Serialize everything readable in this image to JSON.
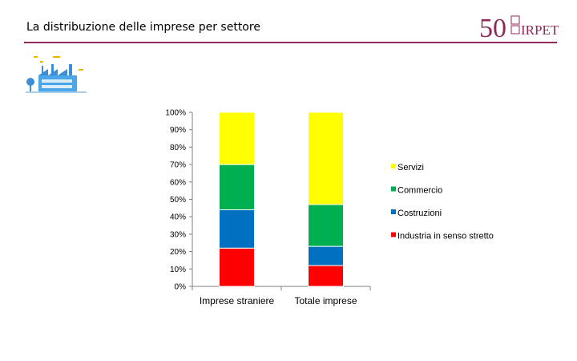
{
  "header": {
    "title": "La distribuzione delle imprese per settore",
    "logo_number": "50",
    "logo_text": "IRPET",
    "accent_color": "#8f2a5a"
  },
  "icons": {
    "illustration": "factory-icon"
  },
  "chart_data": {
    "type": "bar",
    "stacked": true,
    "normalized": true,
    "categories": [
      "Imprese straniere",
      "Totale imprese"
    ],
    "series": [
      {
        "name": "Industria in senso stretto",
        "color": "#ff0000",
        "values": [
          22,
          12
        ]
      },
      {
        "name": "Costruzioni",
        "color": "#0070c0",
        "values": [
          22,
          11
        ]
      },
      {
        "name": "Commercio",
        "color": "#00b050",
        "values": [
          26,
          24
        ]
      },
      {
        "name": "Servizi",
        "color": "#ffff00",
        "values": [
          30,
          53
        ]
      }
    ],
    "ylim": [
      0,
      100
    ],
    "yticks": [
      "0%",
      "10%",
      "20%",
      "30%",
      "40%",
      "50%",
      "60%",
      "70%",
      "80%",
      "90%",
      "100%"
    ],
    "legend_position": "right",
    "grid": false
  }
}
